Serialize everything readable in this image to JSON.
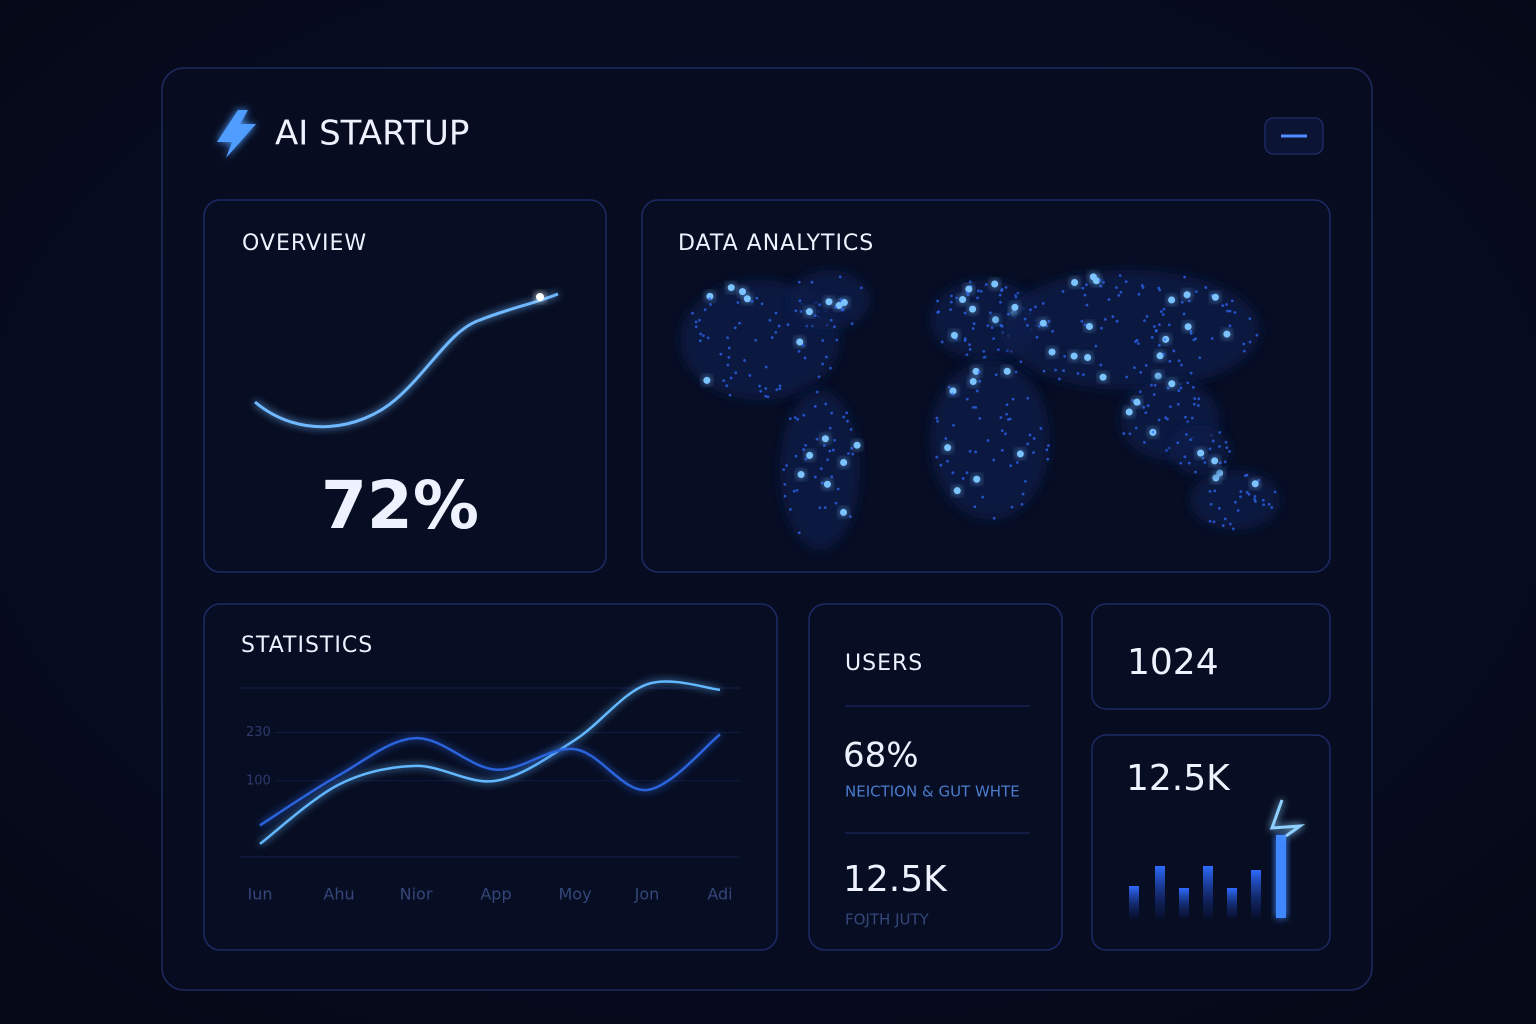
{
  "header": {
    "title": "AI STARTUP"
  },
  "overview": {
    "title": "OVERVIEW",
    "value": "72%"
  },
  "analytics": {
    "title": "DATA ANALYTICS"
  },
  "statistics": {
    "title": "STATISTICS",
    "chart_data": {
      "type": "line",
      "categories": [
        "Iun",
        "Ahu",
        "Nior",
        "App",
        "Moy",
        "Jon",
        "Adi"
      ],
      "series": [
        {
          "color": "#63b8ff",
          "values": [
            -70,
            90,
            140,
            100,
            210,
            360,
            345
          ]
        },
        {
          "color": "#2b63dc",
          "values": [
            -20,
            115,
            215,
            130,
            185,
            75,
            225
          ]
        }
      ],
      "ylim": [
        -100,
        385
      ],
      "yticks": [
        100,
        230
      ]
    }
  },
  "users": {
    "title": "USERS",
    "rate": "68%",
    "rate_label": "NEICTION & GUT WHTE",
    "count": "12.5K",
    "count_label": "FOJTH JUTY"
  },
  "stat_cards": [
    {
      "value": "1024"
    },
    {
      "value": "12.5K"
    }
  ]
}
